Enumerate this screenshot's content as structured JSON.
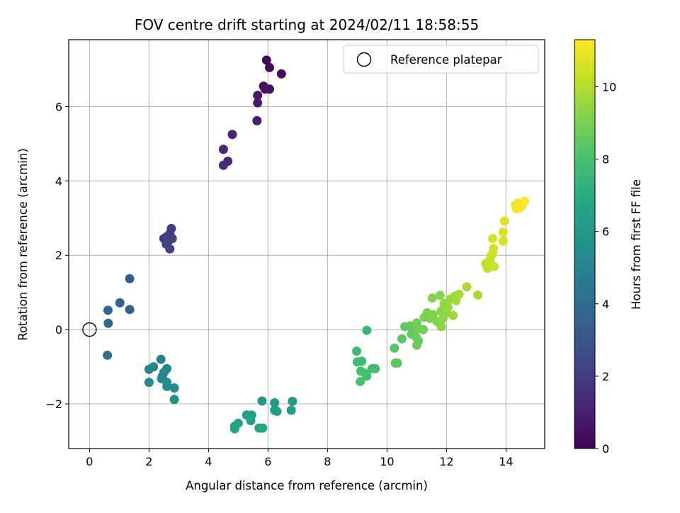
{
  "chart_data": {
    "type": "scatter",
    "title": "FOV centre drift starting at 2024/02/11 18:58:55",
    "xlabel": "Angular distance from reference (arcmin)",
    "ylabel": "Rotation from reference (arcmin)",
    "xlim": [
      -0.7,
      15.3
    ],
    "ylim": [
      -3.2,
      7.8
    ],
    "xticks": [
      0,
      2,
      4,
      6,
      8,
      10,
      12,
      14
    ],
    "yticks": [
      -2,
      0,
      2,
      4,
      6
    ],
    "grid": true,
    "legend": {
      "location": "upper-right",
      "entries": [
        "Reference platepar"
      ]
    },
    "reference_point": {
      "x": 0,
      "y": 0
    },
    "colorbar": {
      "label": "Hours from first FF file",
      "colormap": "viridis",
      "range": [
        0,
        11.3
      ],
      "ticks": [
        0,
        2,
        4,
        6,
        8,
        10
      ]
    },
    "points": [
      {
        "x": 5.95,
        "y": 7.25,
        "h": 0.1
      },
      {
        "x": 6.05,
        "y": 7.05,
        "h": 0.2
      },
      {
        "x": 6.45,
        "y": 6.88,
        "h": 0.3
      },
      {
        "x": 5.85,
        "y": 6.55,
        "h": 0.4
      },
      {
        "x": 5.9,
        "y": 6.47,
        "h": 0.5
      },
      {
        "x": 6.05,
        "y": 6.47,
        "h": 0.6
      },
      {
        "x": 5.65,
        "y": 6.3,
        "h": 0.7
      },
      {
        "x": 5.65,
        "y": 6.1,
        "h": 0.8
      },
      {
        "x": 5.63,
        "y": 5.62,
        "h": 0.9
      },
      {
        "x": 4.8,
        "y": 5.25,
        "h": 1.1
      },
      {
        "x": 4.5,
        "y": 4.85,
        "h": 1.2
      },
      {
        "x": 4.65,
        "y": 4.53,
        "h": 1.3
      },
      {
        "x": 4.5,
        "y": 4.42,
        "h": 1.4
      },
      {
        "x": 2.75,
        "y": 2.72,
        "h": 1.9
      },
      {
        "x": 2.7,
        "y": 2.58,
        "h": 1.95
      },
      {
        "x": 2.5,
        "y": 2.45,
        "h": 2.0
      },
      {
        "x": 2.6,
        "y": 2.5,
        "h": 2.0
      },
      {
        "x": 2.78,
        "y": 2.45,
        "h": 2.05
      },
      {
        "x": 2.65,
        "y": 2.38,
        "h": 2.1
      },
      {
        "x": 2.58,
        "y": 2.3,
        "h": 2.15
      },
      {
        "x": 2.7,
        "y": 2.17,
        "h": 2.2
      },
      {
        "x": 1.35,
        "y": 1.37,
        "h": 3.3
      },
      {
        "x": 1.02,
        "y": 0.72,
        "h": 3.5
      },
      {
        "x": 1.35,
        "y": 0.54,
        "h": 3.6
      },
      {
        "x": 0.62,
        "y": 0.52,
        "h": 3.7
      },
      {
        "x": 0.63,
        "y": 0.17,
        "h": 3.85
      },
      {
        "x": 0.6,
        "y": -0.69,
        "h": 4.1
      },
      {
        "x": 2.4,
        "y": -0.8,
        "h": 5.0
      },
      {
        "x": 2.15,
        "y": -1.0,
        "h": 5.05
      },
      {
        "x": 2.0,
        "y": -1.07,
        "h": 5.1
      },
      {
        "x": 2.6,
        "y": -1.05,
        "h": 5.15
      },
      {
        "x": 2.5,
        "y": -1.15,
        "h": 5.2
      },
      {
        "x": 2.45,
        "y": -1.25,
        "h": 5.25
      },
      {
        "x": 2.42,
        "y": -1.32,
        "h": 5.3
      },
      {
        "x": 2.0,
        "y": -1.42,
        "h": 5.35
      },
      {
        "x": 2.6,
        "y": -1.42,
        "h": 5.4
      },
      {
        "x": 2.6,
        "y": -1.53,
        "h": 5.45
      },
      {
        "x": 2.85,
        "y": -1.57,
        "h": 5.5
      },
      {
        "x": 2.85,
        "y": -1.88,
        "h": 5.6
      },
      {
        "x": 5.8,
        "y": -1.92,
        "h": 6.0
      },
      {
        "x": 6.82,
        "y": -1.93,
        "h": 6.1
      },
      {
        "x": 6.22,
        "y": -1.97,
        "h": 6.15
      },
      {
        "x": 6.22,
        "y": -2.17,
        "h": 6.2
      },
      {
        "x": 6.3,
        "y": -2.2,
        "h": 6.25
      },
      {
        "x": 6.78,
        "y": -2.17,
        "h": 6.3
      },
      {
        "x": 5.28,
        "y": -2.3,
        "h": 6.35
      },
      {
        "x": 5.45,
        "y": -2.3,
        "h": 6.4
      },
      {
        "x": 5.42,
        "y": -2.45,
        "h": 6.45
      },
      {
        "x": 5.0,
        "y": -2.52,
        "h": 6.5
      },
      {
        "x": 4.88,
        "y": -2.6,
        "h": 6.55
      },
      {
        "x": 4.88,
        "y": -2.67,
        "h": 6.6
      },
      {
        "x": 5.7,
        "y": -2.65,
        "h": 6.65
      },
      {
        "x": 5.82,
        "y": -2.65,
        "h": 6.7
      },
      {
        "x": 9.32,
        "y": -0.02,
        "h": 7.5
      },
      {
        "x": 8.98,
        "y": -0.58,
        "h": 7.6
      },
      {
        "x": 9.15,
        "y": -0.85,
        "h": 7.65
      },
      {
        "x": 9.0,
        "y": -0.87,
        "h": 7.7
      },
      {
        "x": 9.5,
        "y": -1.05,
        "h": 7.75
      },
      {
        "x": 9.6,
        "y": -1.05,
        "h": 7.8
      },
      {
        "x": 9.12,
        "y": -1.12,
        "h": 7.85
      },
      {
        "x": 9.25,
        "y": -1.17,
        "h": 7.9
      },
      {
        "x": 9.32,
        "y": -1.25,
        "h": 7.95
      },
      {
        "x": 9.1,
        "y": -1.4,
        "h": 8.0
      },
      {
        "x": 10.25,
        "y": -0.5,
        "h": 8.3
      },
      {
        "x": 10.28,
        "y": -0.9,
        "h": 8.35
      },
      {
        "x": 10.35,
        "y": -0.9,
        "h": 8.4
      },
      {
        "x": 10.5,
        "y": -0.25,
        "h": 8.45
      },
      {
        "x": 10.6,
        "y": 0.08,
        "h": 8.5
      },
      {
        "x": 10.78,
        "y": 0.1,
        "h": 8.55
      },
      {
        "x": 10.82,
        "y": -0.12,
        "h": 8.6
      },
      {
        "x": 10.98,
        "y": -0.2,
        "h": 8.65
      },
      {
        "x": 11.05,
        "y": -0.3,
        "h": 8.7
      },
      {
        "x": 11.0,
        "y": -0.42,
        "h": 8.75
      },
      {
        "x": 11.0,
        "y": 0.18,
        "h": 8.8
      },
      {
        "x": 11.05,
        "y": 0.03,
        "h": 8.85
      },
      {
        "x": 11.22,
        "y": 0.0,
        "h": 8.9
      },
      {
        "x": 11.25,
        "y": 0.33,
        "h": 8.95
      },
      {
        "x": 11.35,
        "y": 0.45,
        "h": 9.0
      },
      {
        "x": 11.45,
        "y": 0.3,
        "h": 9.05
      },
      {
        "x": 11.55,
        "y": 0.4,
        "h": 9.1
      },
      {
        "x": 11.68,
        "y": 0.22,
        "h": 9.15
      },
      {
        "x": 11.52,
        "y": 0.85,
        "h": 9.2
      },
      {
        "x": 11.78,
        "y": 0.92,
        "h": 9.25
      },
      {
        "x": 11.82,
        "y": 0.5,
        "h": 9.3
      },
      {
        "x": 11.82,
        "y": 0.08,
        "h": 9.3
      },
      {
        "x": 11.88,
        "y": 0.3,
        "h": 9.35
      },
      {
        "x": 11.92,
        "y": 0.7,
        "h": 9.4
      },
      {
        "x": 12.0,
        "y": 0.45,
        "h": 9.45
      },
      {
        "x": 12.05,
        "y": 0.6,
        "h": 9.5
      },
      {
        "x": 12.12,
        "y": 0.82,
        "h": 9.55
      },
      {
        "x": 12.22,
        "y": 0.38,
        "h": 9.6
      },
      {
        "x": 12.28,
        "y": 0.9,
        "h": 9.65
      },
      {
        "x": 12.32,
        "y": 0.78,
        "h": 9.7
      },
      {
        "x": 12.42,
        "y": 0.95,
        "h": 9.75
      },
      {
        "x": 12.68,
        "y": 1.15,
        "h": 9.8
      },
      {
        "x": 13.05,
        "y": 0.93,
        "h": 9.85
      },
      {
        "x": 13.32,
        "y": 1.78,
        "h": 10.2
      },
      {
        "x": 13.38,
        "y": 1.65,
        "h": 10.25
      },
      {
        "x": 13.45,
        "y": 1.85,
        "h": 10.3
      },
      {
        "x": 13.5,
        "y": 1.98,
        "h": 10.35
      },
      {
        "x": 13.6,
        "y": 1.7,
        "h": 10.4
      },
      {
        "x": 13.55,
        "y": 2.05,
        "h": 10.45
      },
      {
        "x": 13.58,
        "y": 2.18,
        "h": 10.5
      },
      {
        "x": 13.55,
        "y": 2.45,
        "h": 10.55
      },
      {
        "x": 13.9,
        "y": 2.38,
        "h": 10.6
      },
      {
        "x": 13.9,
        "y": 2.62,
        "h": 10.65
      },
      {
        "x": 13.95,
        "y": 2.92,
        "h": 10.7
      },
      {
        "x": 14.32,
        "y": 3.35,
        "h": 11.0
      },
      {
        "x": 14.4,
        "y": 3.4,
        "h": 11.05
      },
      {
        "x": 14.35,
        "y": 3.25,
        "h": 11.1
      },
      {
        "x": 14.48,
        "y": 3.28,
        "h": 11.15
      },
      {
        "x": 14.55,
        "y": 3.35,
        "h": 11.2
      },
      {
        "x": 14.62,
        "y": 3.45,
        "h": 11.25
      }
    ]
  }
}
